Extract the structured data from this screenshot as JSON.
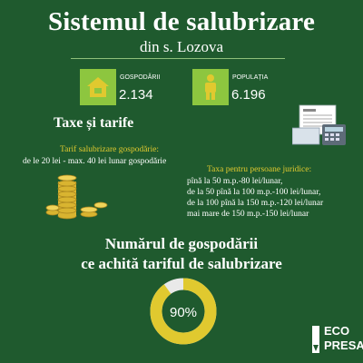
{
  "header": {
    "title": "Sistemul de salubrizare",
    "subtitle": "din s. Lozova"
  },
  "stats": {
    "households": {
      "label": "GOSPODĂRII",
      "value": "2.134",
      "icon": "house-icon"
    },
    "population": {
      "label": "POPULAȚIA",
      "value": "6.196",
      "icon": "person-icon"
    }
  },
  "taxes": {
    "title": "Taxe și tarife",
    "household_tariff_title": "Tarif salubrizare gospodărie:",
    "household_tariff_text": "de le 20 lei  -  max. 40 lei lunar gospodărie",
    "legal_tax_title": "Taxa pentru persoane juridice:",
    "legal_tax_lines": [
      "pînă la 50 m.p.-80 lei/lunar,",
      "de la 50 pînă la 100 m.p.-100 lei/lunar,",
      "de la 100 pînă la 150 m.p.-120 lei/lunar",
      "mai mare de 150 m.p.-150 lei/lunar"
    ]
  },
  "households_paying": {
    "title_line1": "Numărul de gospodării",
    "title_line2": "ce achită tariful de salubrizare",
    "percent": 90,
    "percent_label": "90%"
  },
  "logo": {
    "line1": "ECO",
    "line2": "PRESA"
  },
  "colors": {
    "background": "#1f5a2e",
    "accent_green": "#8dc63f",
    "accent_yellow": "#e0c92f",
    "donut_rest": "#e9e9e9"
  }
}
